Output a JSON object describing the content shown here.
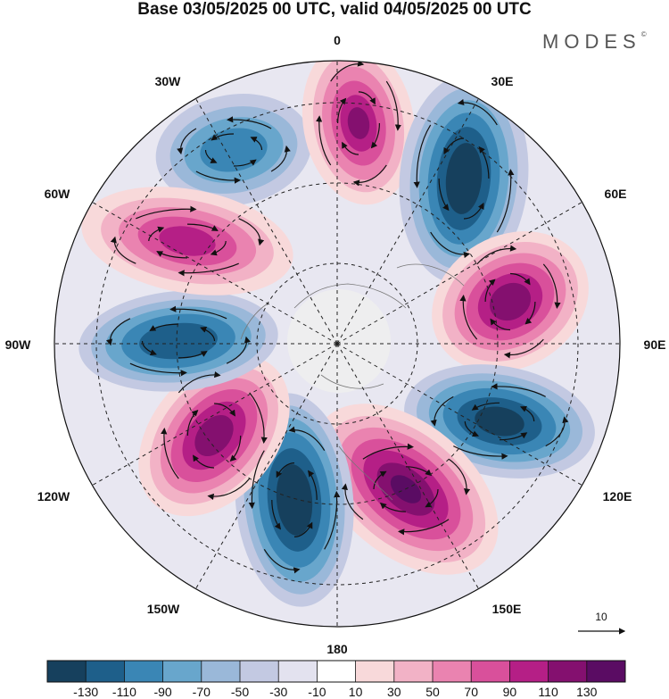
{
  "title": "Base 03/05/2025 00 UTC, valid 04/05/2025 00 UTC",
  "brand": "MODES",
  "brand_mark": "©",
  "longitude_labels": {
    "lon_0": "0",
    "lon_30e": "30E",
    "lon_60e": "60E",
    "lon_90e": "90E",
    "lon_120e": "120E",
    "lon_150e": "150E",
    "lon_180": "180",
    "lon_150w": "150W",
    "lon_120w": "120W",
    "lon_90w": "90W",
    "lon_60w": "60W",
    "lon_30w": "30W"
  },
  "vector_reference": "10",
  "colorbar": {
    "colors": [
      "#16405d",
      "#1e5f8a",
      "#3a86b5",
      "#68a6cc",
      "#9ab8d9",
      "#c3c9e2",
      "#e3e2ef",
      "#ffffff",
      "#f8d9da",
      "#f2b2c6",
      "#ea83b0",
      "#d9509b",
      "#b51f86",
      "#84106f",
      "#5a0c63"
    ],
    "tick_labels": [
      "-130",
      "-110",
      "-90",
      "-70",
      "-50",
      "-30",
      "-10",
      "10",
      "30",
      "50",
      "70",
      "90",
      "110",
      "130"
    ]
  },
  "anomaly_cells": [
    {
      "sign": "negative",
      "intensity": 0.7
    },
    {
      "sign": "positive",
      "intensity": 0.85
    },
    {
      "sign": "negative",
      "intensity": 1.0
    },
    {
      "sign": "positive",
      "intensity": 0.95
    },
    {
      "sign": "negative",
      "intensity": 0.95
    },
    {
      "sign": "positive",
      "intensity": 1.0
    },
    {
      "sign": "negative",
      "intensity": 1.0
    },
    {
      "sign": "positive",
      "intensity": 0.95
    },
    {
      "sign": "negative",
      "intensity": 0.9
    },
    {
      "sign": "positive",
      "intensity": 0.85
    }
  ]
}
